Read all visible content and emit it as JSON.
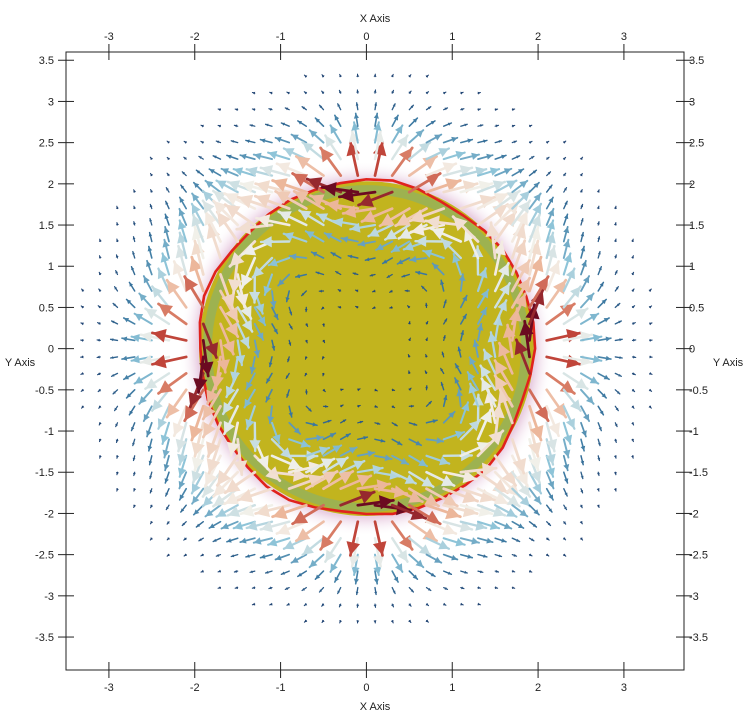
{
  "chart_data": {
    "type": "vector-field",
    "axes": {
      "x_title": "X Axis",
      "y_title": "Y Axis",
      "xlim": [
        -3.5,
        3.7
      ],
      "ylim": [
        -3.9,
        3.6
      ],
      "x_ticks": [
        -3,
        -2,
        -1,
        0,
        1,
        2,
        3
      ],
      "x_tick_labels": [
        "-3",
        "-2",
        "-1",
        "0",
        "1",
        "2",
        "3"
      ],
      "y_ticks": [
        3.5,
        3,
        2.5,
        2,
        1.5,
        1,
        0.5,
        0,
        -0.5,
        -1,
        -1.5,
        -2,
        -2.5,
        -3,
        -3.5
      ],
      "y_tick_labels": [
        "3.5",
        "3",
        "2.5",
        "2",
        "1.5",
        "1",
        "0.5",
        "0",
        "-0.5",
        "-1",
        "-1.5",
        "-2",
        "-2.5",
        "-3",
        "-3.5"
      ],
      "grid": false
    },
    "disk": {
      "center": [
        0,
        0
      ],
      "radius": 1.95,
      "fill_color": "#c2b41e",
      "boundary_color": "#e0231d",
      "halo_color": "#e8cbe0",
      "inner_ring_color": "#7fb07a"
    },
    "arrow_grid": {
      "x_range": [
        -3.3,
        3.5
      ],
      "y_range": [
        -3.7,
        3.5
      ],
      "spacing": 0.2
    },
    "colormap": [
      "#1d3e6e",
      "#3a77a0",
      "#8cc3d8",
      "#f4f1ea",
      "#eaa786",
      "#c0453a",
      "#6b0a21"
    ]
  }
}
